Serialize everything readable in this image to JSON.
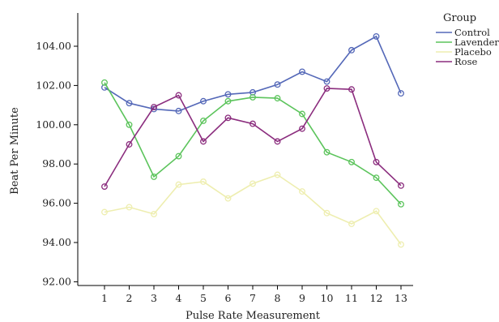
{
  "chart_data": {
    "type": "line",
    "xlabel": "Pulse Rate Measurement",
    "ylabel": "Beat Per Minute",
    "x": [
      1,
      2,
      3,
      4,
      5,
      6,
      7,
      8,
      9,
      10,
      11,
      12,
      13
    ],
    "x_tick_labels": [
      "1",
      "2",
      "3",
      "4",
      "5",
      "6",
      "7",
      "8",
      "9",
      "10",
      "11",
      "12",
      "13"
    ],
    "ylim": [
      92,
      106
    ],
    "y_ticks": [
      92,
      94,
      96,
      98,
      100,
      102,
      104
    ],
    "y_tick_labels": [
      "92.00",
      "94.00",
      "96.00",
      "98.00",
      "100.00",
      "102.00",
      "104.00"
    ],
    "grid": false,
    "legend": {
      "title": "Group",
      "position": "top-right"
    },
    "series": [
      {
        "name": "Control",
        "color": "#5468b8",
        "values": [
          101.9,
          101.1,
          100.8,
          100.7,
          101.2,
          101.55,
          101.65,
          102.05,
          102.7,
          102.2,
          103.8,
          104.5,
          101.6
        ]
      },
      {
        "name": "Lavender",
        "color": "#5cc45c",
        "values": [
          102.15,
          100.0,
          97.35,
          98.4,
          100.2,
          101.2,
          101.4,
          101.35,
          100.55,
          98.6,
          98.1,
          97.3,
          95.95
        ]
      },
      {
        "name": "Placebo",
        "color": "#eeeeb0",
        "values": [
          95.55,
          95.8,
          95.45,
          96.95,
          97.1,
          96.25,
          97.0,
          97.45,
          96.6,
          95.5,
          94.95,
          95.6,
          93.9
        ]
      },
      {
        "name": "Rose",
        "color": "#8b2d7e",
        "values": [
          96.85,
          99.0,
          100.9,
          101.5,
          99.15,
          100.35,
          100.05,
          99.15,
          99.8,
          101.85,
          101.8,
          98.1,
          96.9
        ]
      }
    ]
  }
}
